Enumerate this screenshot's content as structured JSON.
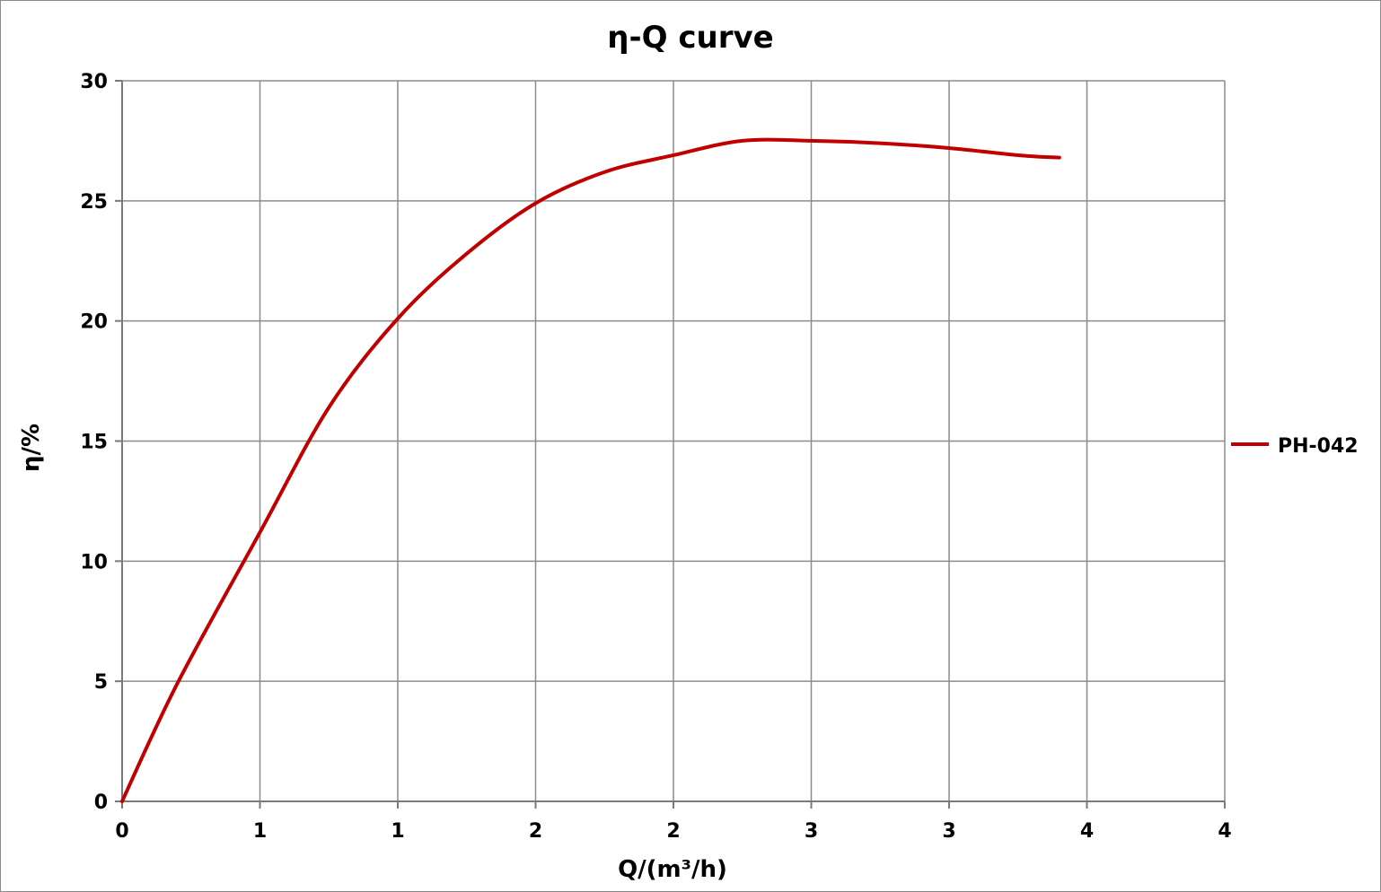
{
  "chart_data": {
    "type": "line",
    "title": "η-Q  curve",
    "xlabel": "Q/(m³/h)",
    "ylabel": "η/%",
    "xlim": [
      0,
      4
    ],
    "ylim": [
      0,
      30
    ],
    "x_tick_labels": [
      "0",
      "1",
      "1",
      "2",
      "2",
      "3",
      "3",
      "4",
      "4"
    ],
    "y_tick_labels": [
      "0",
      "5",
      "10",
      "15",
      "20",
      "25",
      "30"
    ],
    "grid": true,
    "legend_position": "right",
    "series": [
      {
        "name": "PH-042",
        "color": "#c00000",
        "x": [
          0,
          0.2,
          0.5,
          0.75,
          1.0,
          1.25,
          1.5,
          1.75,
          2.0,
          2.25,
          2.5,
          2.75,
          3.0,
          3.25,
          3.4
        ],
        "y": [
          0,
          4.9,
          11.2,
          16.4,
          20.1,
          22.8,
          24.9,
          26.2,
          26.9,
          27.5,
          27.5,
          27.4,
          27.2,
          26.9,
          26.8
        ]
      }
    ]
  }
}
